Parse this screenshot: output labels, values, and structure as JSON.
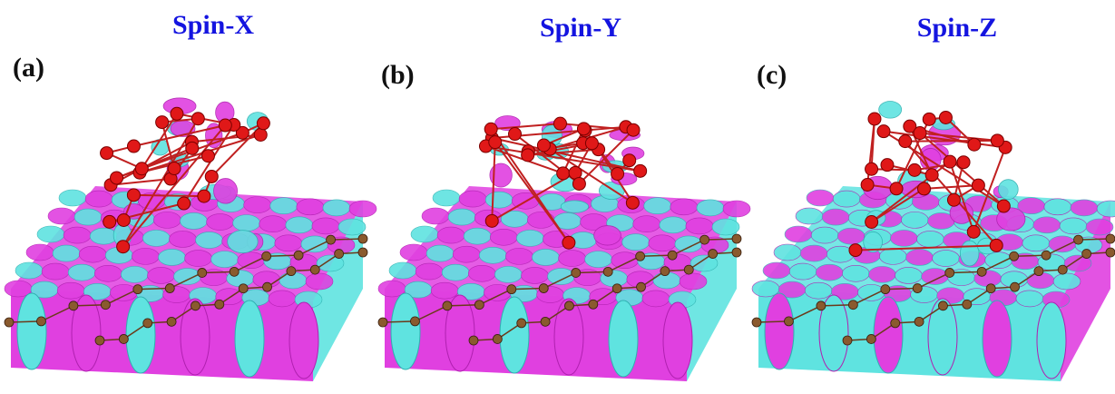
{
  "panels": [
    {
      "label": "(a)",
      "title": "Spin-X"
    },
    {
      "label": "(b)",
      "title": "Spin-Y"
    },
    {
      "label": "(c)",
      "title": "Spin-Z"
    }
  ]
}
